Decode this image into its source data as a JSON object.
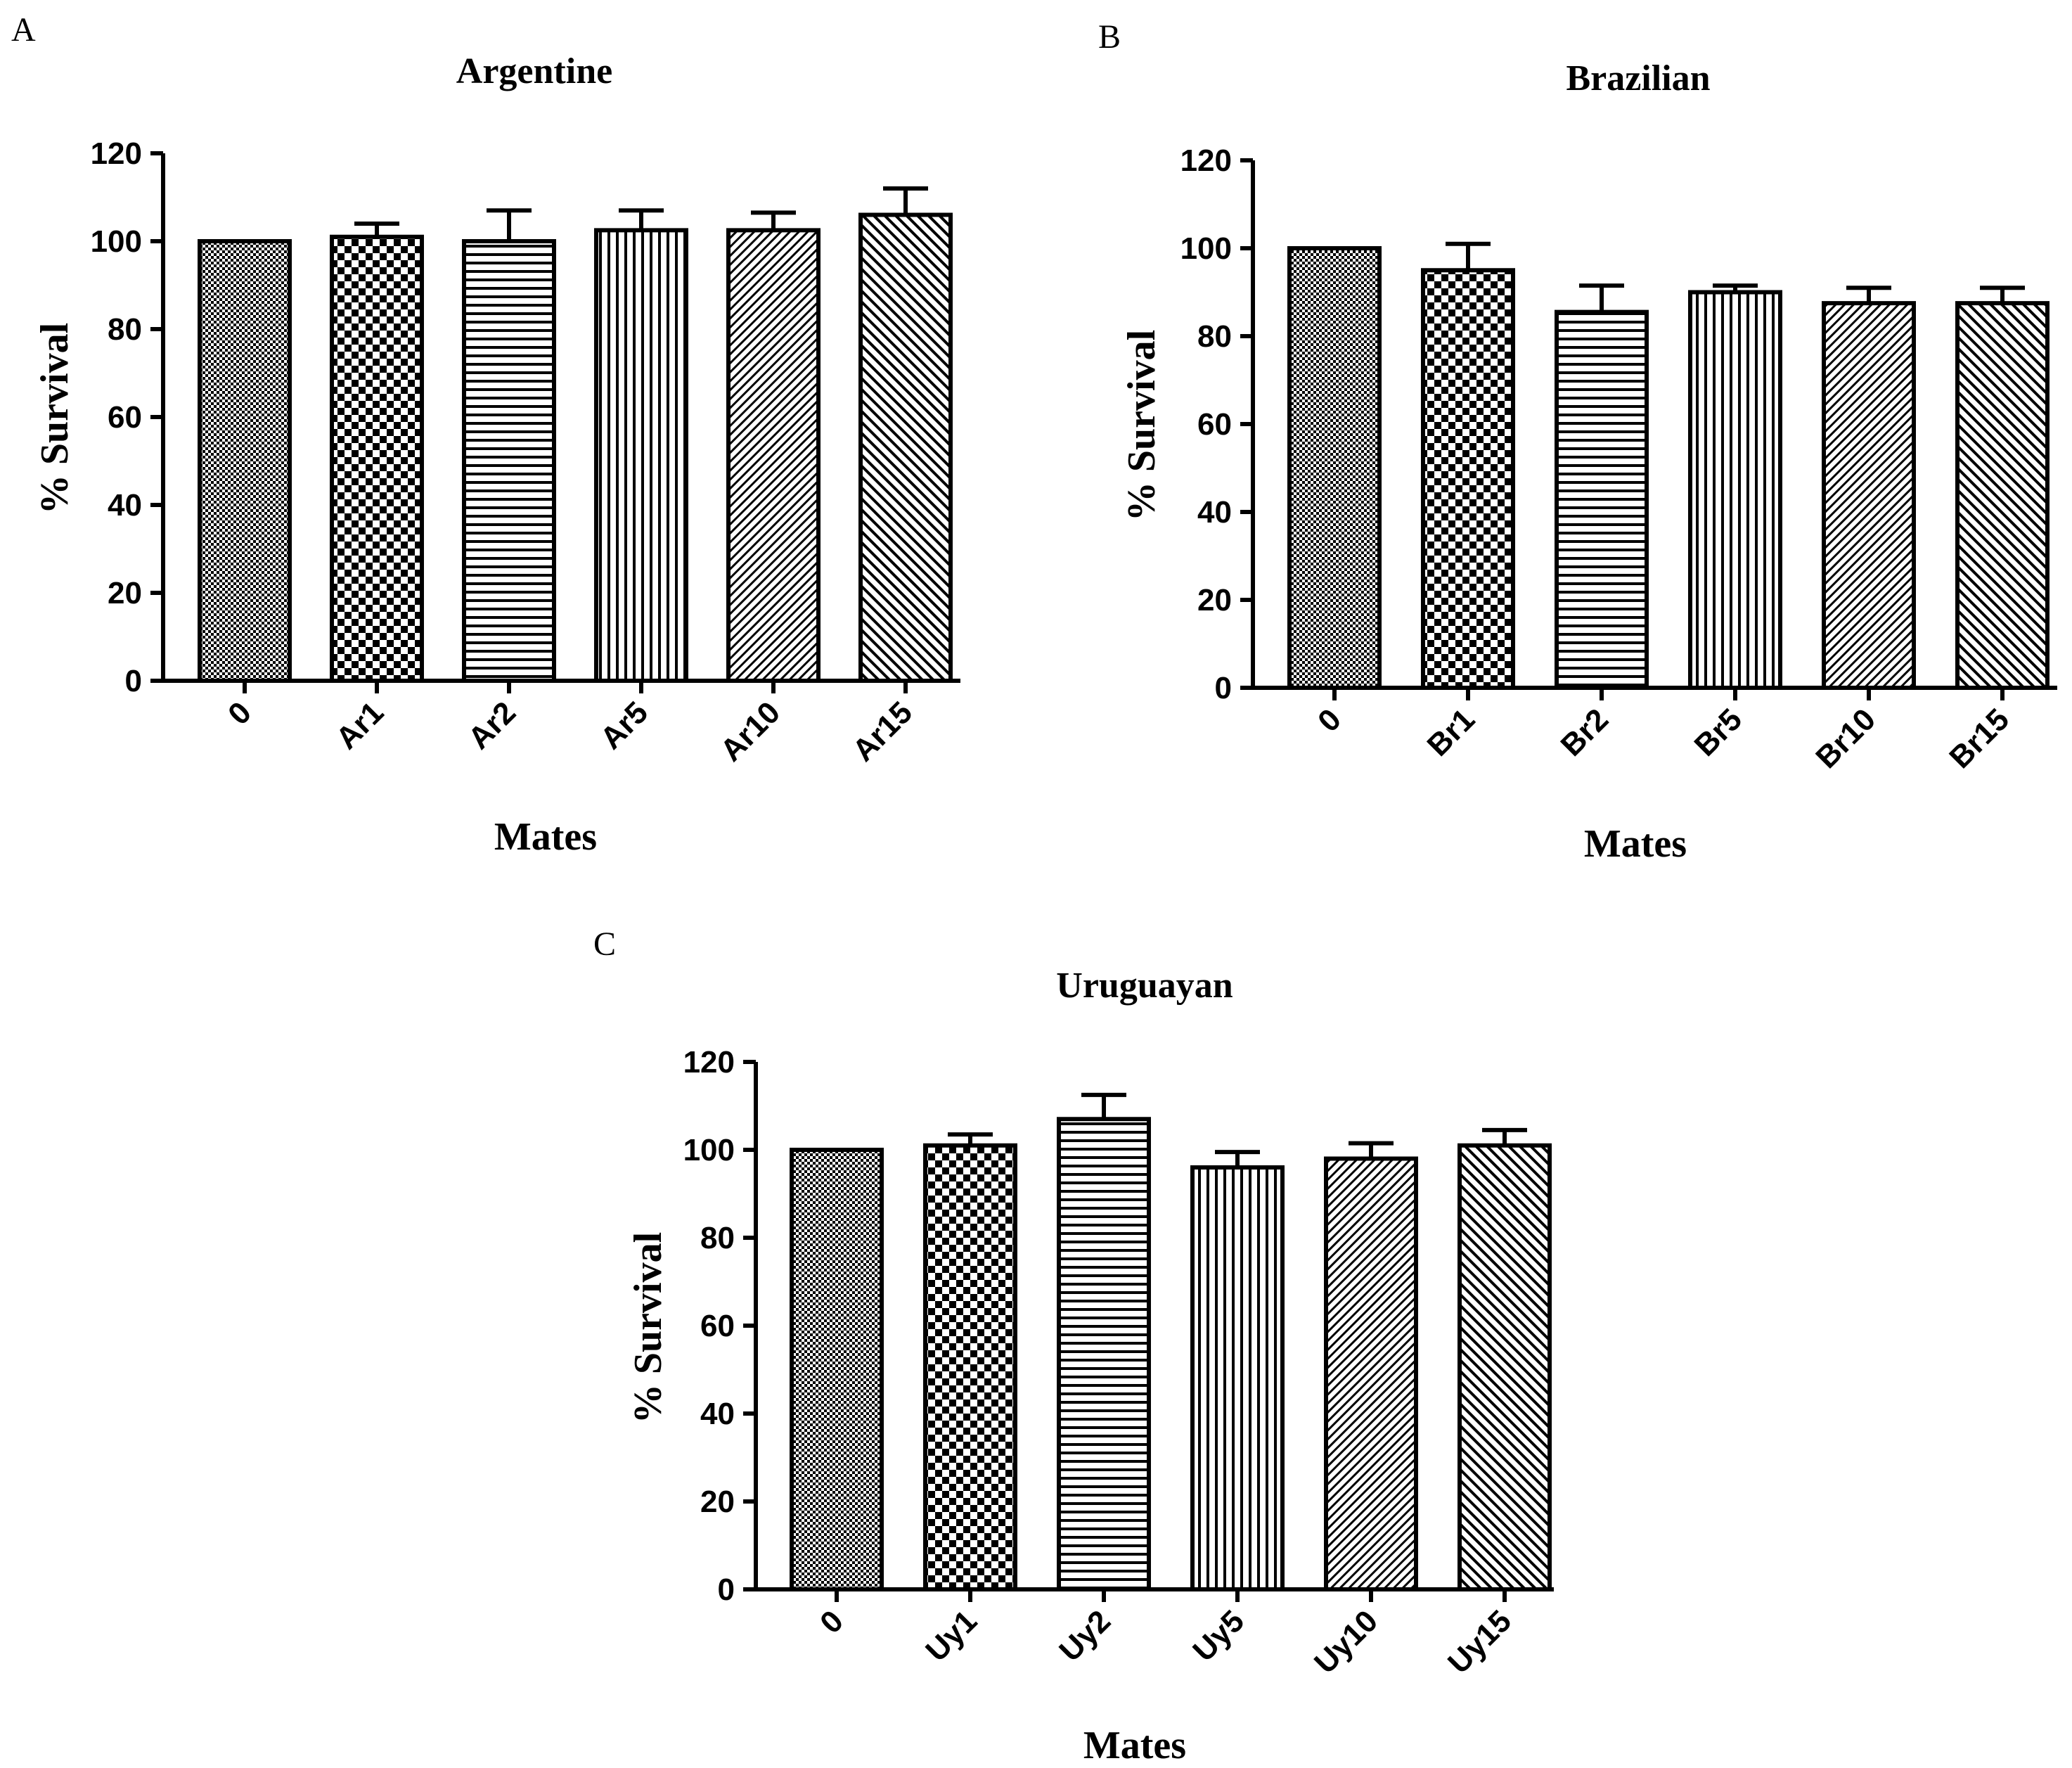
{
  "chart_data": [
    {
      "type": "bar",
      "panel": "A",
      "title": "Argentine",
      "xlabel": "Mates",
      "ylabel": "% Survival",
      "ylim": [
        0,
        120
      ],
      "yticks": [
        "0",
        "20",
        "40",
        "60",
        "80",
        "100",
        "120"
      ],
      "categories": [
        "0",
        "Ar1",
        "Ar2",
        "Ar5",
        "Ar10",
        "Ar15"
      ],
      "values": [
        100,
        101,
        100,
        102.5,
        102.5,
        106
      ],
      "errors": [
        0,
        3,
        7,
        4.5,
        4,
        6
      ],
      "patterns": [
        "fine-dots",
        "checker",
        "hlines",
        "vlines",
        "diag-fine",
        "diag-coarse"
      ]
    },
    {
      "type": "bar",
      "panel": "B",
      "title": "Brazilian",
      "xlabel": "Mates",
      "ylabel": "% Survival",
      "ylim": [
        0,
        120
      ],
      "yticks": [
        "0",
        "20",
        "40",
        "60",
        "80",
        "100",
        "120"
      ],
      "categories": [
        "0",
        "Br1",
        "Br2",
        "Br5",
        "Br10",
        "Br15"
      ],
      "values": [
        100,
        95,
        85.5,
        90,
        87.5,
        87.5
      ],
      "errors": [
        0,
        6,
        6,
        1.5,
        3.5,
        3.5
      ],
      "patterns": [
        "fine-dots",
        "checker",
        "hlines",
        "vlines",
        "diag-fine",
        "diag-coarse"
      ]
    },
    {
      "type": "bar",
      "panel": "C",
      "title": "Uruguayan",
      "xlabel": "Mates",
      "ylabel": "% Survival",
      "ylim": [
        0,
        120
      ],
      "yticks": [
        "0",
        "20",
        "40",
        "60",
        "80",
        "100",
        "120"
      ],
      "categories": [
        "0",
        "Uy1",
        "Uy2",
        "Uy5",
        "Uy10",
        "Uy15"
      ],
      "values": [
        100,
        101,
        107,
        96,
        98,
        101
      ],
      "errors": [
        0,
        2.5,
        5.5,
        3.5,
        3.5,
        3.5
      ],
      "patterns": [
        "fine-dots",
        "checker",
        "hlines",
        "vlines",
        "diag-fine",
        "diag-coarse"
      ]
    }
  ]
}
